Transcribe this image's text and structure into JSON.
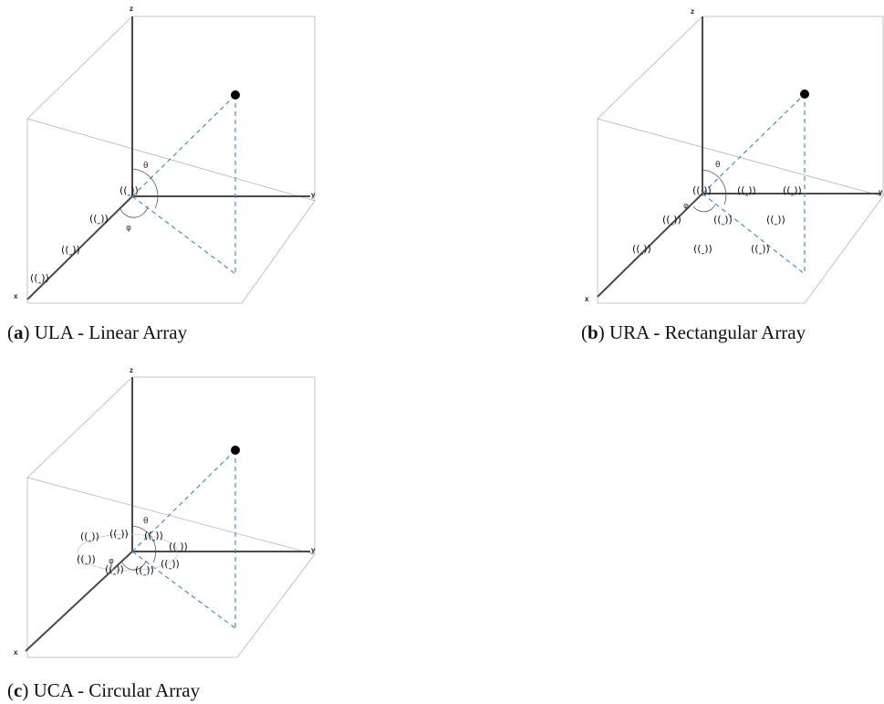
{
  "figure": {
    "panels": [
      {
        "id": "a",
        "axis_labels": {
          "x": "x",
          "y": "y",
          "z": "z"
        },
        "angles": {
          "theta": "θ",
          "phi": "φ"
        },
        "antenna_icon": "antenna-icon",
        "antenna_count": 4,
        "caption": {
          "tag": "a",
          "text": " ULA - Linear Array"
        }
      },
      {
        "id": "b",
        "axis_labels": {
          "x": "x",
          "y": "y",
          "z": "z"
        },
        "angles": {
          "theta": "θ",
          "phi": "φ"
        },
        "antenna_icon": "antenna-icon",
        "antenna_count": 9,
        "caption": {
          "tag": "b",
          "text": " URA - Rectangular Array"
        }
      },
      {
        "id": "c",
        "axis_labels": {
          "x": "x",
          "y": "y",
          "z": "z"
        },
        "angles": {
          "theta": "θ",
          "phi": "φ"
        },
        "antenna_icon": "antenna-icon",
        "antenna_count": 8,
        "caption": {
          "tag": "c",
          "text": " UCA - Circular Array"
        }
      }
    ],
    "colors": {
      "projection_lines": "#2f86d6",
      "axes": "#4a4a4a",
      "box_edges": "#b4b4b4",
      "source_point": "#000000"
    }
  }
}
